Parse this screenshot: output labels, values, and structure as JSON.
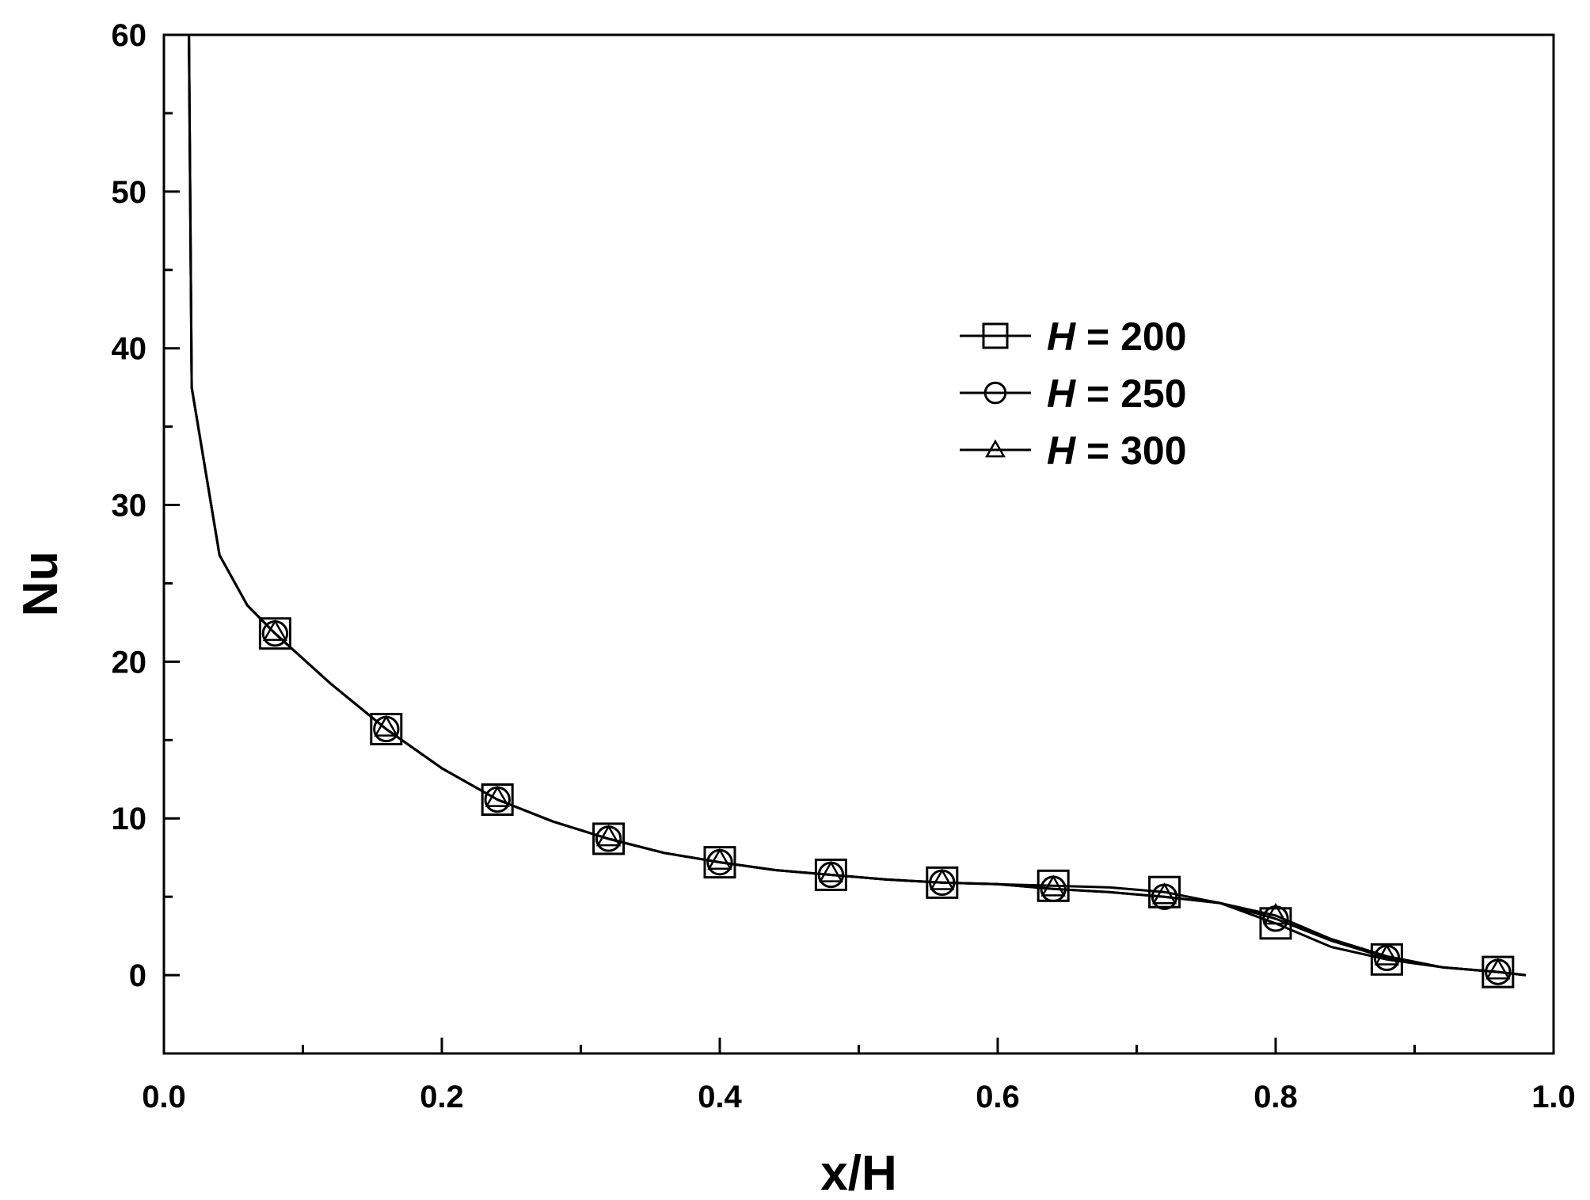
{
  "chart_data": {
    "type": "line",
    "xlabel": "x/H",
    "ylabel": "Nu",
    "xlim": [
      0.0,
      1.0
    ],
    "ylim": [
      -5,
      60
    ],
    "x_ticks": [
      "0.0",
      "0.2",
      "0.4",
      "0.6",
      "0.8",
      "1.0"
    ],
    "y_ticks": [
      "0",
      "10",
      "20",
      "30",
      "40",
      "50",
      "60"
    ],
    "grid": false,
    "legend_position": "upper-right",
    "series": [
      {
        "name_var": "H",
        "name_rest": " = 200",
        "marker": "square",
        "line": [
          [
            0.018,
            60
          ],
          [
            0.02,
            37.5
          ],
          [
            0.04,
            26.8
          ],
          [
            0.06,
            23.6
          ],
          [
            0.08,
            21.8
          ],
          [
            0.12,
            18.6
          ],
          [
            0.16,
            15.7
          ],
          [
            0.2,
            13.2
          ],
          [
            0.24,
            11.2
          ],
          [
            0.28,
            9.8
          ],
          [
            0.32,
            8.7
          ],
          [
            0.36,
            7.8
          ],
          [
            0.4,
            7.2
          ],
          [
            0.44,
            6.7
          ],
          [
            0.48,
            6.4
          ],
          [
            0.52,
            6.1
          ],
          [
            0.56,
            5.9
          ],
          [
            0.6,
            5.8
          ],
          [
            0.64,
            5.7
          ],
          [
            0.68,
            5.6
          ],
          [
            0.72,
            5.3
          ],
          [
            0.76,
            4.6
          ],
          [
            0.8,
            3.3
          ],
          [
            0.84,
            1.8
          ],
          [
            0.88,
            1.0
          ],
          [
            0.92,
            0.5
          ],
          [
            0.96,
            0.2
          ],
          [
            0.98,
            0.0
          ]
        ],
        "markers": [
          [
            0.08,
            21.8
          ],
          [
            0.16,
            15.7
          ],
          [
            0.24,
            11.2
          ],
          [
            0.32,
            8.7
          ],
          [
            0.4,
            7.2
          ],
          [
            0.48,
            6.4
          ],
          [
            0.56,
            5.9
          ],
          [
            0.64,
            5.7
          ],
          [
            0.72,
            5.3
          ],
          [
            0.8,
            3.3
          ],
          [
            0.88,
            1.0
          ],
          [
            0.96,
            0.2
          ]
        ]
      },
      {
        "name_var": "H",
        "name_rest": " = 250",
        "marker": "circle",
        "line": [
          [
            0.018,
            60
          ],
          [
            0.02,
            37.5
          ],
          [
            0.04,
            26.8
          ],
          [
            0.06,
            23.6
          ],
          [
            0.08,
            21.8
          ],
          [
            0.12,
            18.6
          ],
          [
            0.16,
            15.7
          ],
          [
            0.2,
            13.2
          ],
          [
            0.24,
            11.2
          ],
          [
            0.28,
            9.8
          ],
          [
            0.32,
            8.7
          ],
          [
            0.36,
            7.8
          ],
          [
            0.4,
            7.2
          ],
          [
            0.44,
            6.7
          ],
          [
            0.48,
            6.4
          ],
          [
            0.52,
            6.1
          ],
          [
            0.56,
            5.9
          ],
          [
            0.6,
            5.8
          ],
          [
            0.64,
            5.5
          ],
          [
            0.68,
            5.3
          ],
          [
            0.72,
            5.0
          ],
          [
            0.76,
            4.6
          ],
          [
            0.8,
            3.6
          ],
          [
            0.84,
            2.2
          ],
          [
            0.88,
            1.1
          ],
          [
            0.92,
            0.5
          ],
          [
            0.96,
            0.2
          ],
          [
            0.98,
            0.0
          ]
        ],
        "markers": [
          [
            0.08,
            21.8
          ],
          [
            0.16,
            15.7
          ],
          [
            0.24,
            11.2
          ],
          [
            0.32,
            8.7
          ],
          [
            0.4,
            7.2
          ],
          [
            0.48,
            6.4
          ],
          [
            0.56,
            5.9
          ],
          [
            0.64,
            5.5
          ],
          [
            0.72,
            5.0
          ],
          [
            0.8,
            3.6
          ],
          [
            0.88,
            1.1
          ],
          [
            0.96,
            0.2
          ]
        ]
      },
      {
        "name_var": "H",
        "name_rest": " = 300",
        "marker": "triangle",
        "line": [
          [
            0.018,
            60
          ],
          [
            0.02,
            37.5
          ],
          [
            0.04,
            26.8
          ],
          [
            0.06,
            23.6
          ],
          [
            0.08,
            21.8
          ],
          [
            0.12,
            18.6
          ],
          [
            0.16,
            15.7
          ],
          [
            0.2,
            13.2
          ],
          [
            0.24,
            11.2
          ],
          [
            0.28,
            9.8
          ],
          [
            0.32,
            8.7
          ],
          [
            0.36,
            7.8
          ],
          [
            0.4,
            7.2
          ],
          [
            0.44,
            6.7
          ],
          [
            0.48,
            6.4
          ],
          [
            0.52,
            6.1
          ],
          [
            0.56,
            5.9
          ],
          [
            0.6,
            5.8
          ],
          [
            0.64,
            5.5
          ],
          [
            0.68,
            5.3
          ],
          [
            0.72,
            5.0
          ],
          [
            0.76,
            4.6
          ],
          [
            0.8,
            3.8
          ],
          [
            0.84,
            2.3
          ],
          [
            0.88,
            1.2
          ],
          [
            0.92,
            0.5
          ],
          [
            0.96,
            0.2
          ],
          [
            0.98,
            0.0
          ]
        ],
        "markers": [
          [
            0.08,
            21.9
          ],
          [
            0.16,
            15.8
          ],
          [
            0.24,
            11.3
          ],
          [
            0.32,
            8.8
          ],
          [
            0.4,
            7.3
          ],
          [
            0.48,
            6.5
          ],
          [
            0.56,
            6.0
          ],
          [
            0.64,
            5.6
          ],
          [
            0.72,
            5.1
          ],
          [
            0.8,
            3.8
          ],
          [
            0.88,
            1.2
          ],
          [
            0.96,
            0.3
          ]
        ]
      }
    ]
  },
  "colors": {
    "background": "#ffffff",
    "ink": "#000000"
  }
}
